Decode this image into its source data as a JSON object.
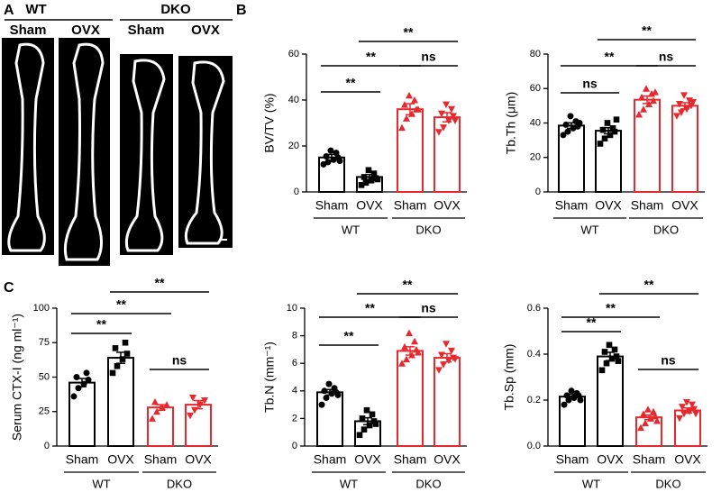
{
  "panel_labels": [
    "A",
    "B",
    "C"
  ],
  "panel_a": {
    "groups": [
      {
        "label": "WT",
        "conditions": [
          "Sham",
          "OVX"
        ]
      },
      {
        "label": "DKO",
        "conditions": [
          "Sham",
          "OVX"
        ]
      }
    ]
  },
  "chart_data": [
    {
      "type": "bar",
      "ylabel": "BV/TV (%)",
      "categories": [
        "Sham",
        "OVX",
        "Sham",
        "OVX"
      ],
      "groups": [
        {
          "name": "WT",
          "color": "#000000"
        },
        {
          "name": "DKO",
          "color": "#e8282d"
        }
      ],
      "values": [
        15,
        6.5,
        36,
        32.5
      ],
      "errors": [
        1.3,
        1.1,
        2.4,
        2.0
      ],
      "points": [
        [
          12,
          13,
          14,
          15,
          15.5,
          17,
          18,
          13.5
        ],
        [
          3,
          4,
          5,
          6,
          6.5,
          8,
          9.5,
          5.5
        ],
        [
          28,
          32,
          34,
          36,
          38,
          40,
          42,
          36
        ],
        [
          26,
          28,
          31,
          33,
          34,
          36,
          38,
          31
        ]
      ],
      "ylim": [
        0,
        60
      ],
      "yticks": [
        0,
        20,
        40,
        60
      ],
      "annotations": [
        "**",
        "**",
        "ns",
        "**"
      ]
    },
    {
      "type": "bar",
      "ylabel": "Tb.Th (μm)",
      "categories": [
        "Sham",
        "OVX",
        "Sham",
        "OVX"
      ],
      "groups": [
        {
          "name": "WT",
          "color": "#000000"
        },
        {
          "name": "DKO",
          "color": "#e8282d"
        }
      ],
      "values": [
        38.5,
        35.5,
        53.5,
        50
      ],
      "errors": [
        1.6,
        1.8,
        2.2,
        1.8
      ],
      "points": [
        [
          33,
          35,
          37,
          38,
          39,
          41,
          44,
          40
        ],
        [
          28,
          31,
          33,
          35,
          36,
          37,
          40,
          42
        ],
        [
          45,
          48,
          51,
          53,
          55,
          57,
          60,
          58
        ],
        [
          44,
          46,
          48,
          50,
          51,
          53,
          56,
          52
        ]
      ],
      "ylim": [
        0,
        80
      ],
      "yticks": [
        0,
        20,
        40,
        60,
        80
      ],
      "annotations": [
        "**",
        "**",
        "ns",
        "ns"
      ]
    },
    {
      "type": "bar",
      "ylabel": "Serum CTX-I (ng ml⁻¹)",
      "categories": [
        "Sham",
        "OVX",
        "Sham",
        "OVX"
      ],
      "groups": [
        {
          "name": "WT",
          "color": "#000000"
        },
        {
          "name": "DKO",
          "color": "#e8282d"
        }
      ],
      "values": [
        46,
        64,
        28,
        30
      ],
      "errors": [
        3,
        4,
        2,
        3
      ],
      "points": [
        [
          36,
          42,
          45,
          48,
          50,
          53
        ],
        [
          53,
          58,
          63,
          67,
          71,
          75
        ],
        [
          20,
          25,
          28,
          30,
          32
        ],
        [
          22,
          26,
          30,
          33,
          35
        ]
      ],
      "ylim": [
        0,
        100
      ],
      "yticks": [
        0,
        25,
        50,
        75,
        100
      ],
      "annotations": [
        "**",
        "**",
        "ns",
        "**"
      ]
    },
    {
      "type": "bar",
      "ylabel": "Tb.N (mm⁻¹)",
      "categories": [
        "Sham",
        "OVX",
        "Sham",
        "OVX"
      ],
      "groups": [
        {
          "name": "WT",
          "color": "#000000"
        },
        {
          "name": "DKO",
          "color": "#e8282d"
        }
      ],
      "values": [
        3.9,
        1.8,
        6.9,
        6.4
      ],
      "errors": [
        0.2,
        0.25,
        0.3,
        0.3
      ],
      "points": [
        [
          3.0,
          3.5,
          3.8,
          3.9,
          4.0,
          4.2,
          4.5,
          3.7
        ],
        [
          0.8,
          1.2,
          1.5,
          1.8,
          2.0,
          2.3,
          2.6,
          1.6
        ],
        [
          6.0,
          6.3,
          6.6,
          7.0,
          7.2,
          7.6,
          8.2,
          6.8
        ],
        [
          5.5,
          5.9,
          6.2,
          6.4,
          6.6,
          6.9,
          7.4,
          6.3
        ]
      ],
      "ylim": [
        0,
        10
      ],
      "yticks": [
        0,
        2,
        4,
        6,
        8,
        10
      ],
      "annotations": [
        "**",
        "**",
        "ns",
        "**"
      ]
    },
    {
      "type": "bar",
      "ylabel": "Tb.Sp (mm)",
      "categories": [
        "Sham",
        "OVX",
        "Sham",
        "OVX"
      ],
      "groups": [
        {
          "name": "WT",
          "color": "#000000"
        },
        {
          "name": "DKO",
          "color": "#e8282d"
        }
      ],
      "values": [
        0.215,
        0.39,
        0.125,
        0.155
      ],
      "errors": [
        0.01,
        0.018,
        0.01,
        0.011
      ],
      "points": [
        [
          0.18,
          0.2,
          0.21,
          0.22,
          0.22,
          0.23,
          0.24,
          0.2
        ],
        [
          0.33,
          0.36,
          0.38,
          0.39,
          0.41,
          0.42,
          0.44,
          0.37
        ],
        [
          0.08,
          0.1,
          0.12,
          0.13,
          0.14,
          0.15,
          0.16,
          0.11
        ],
        [
          0.12,
          0.14,
          0.15,
          0.16,
          0.17,
          0.18,
          0.19,
          0.14
        ]
      ],
      "ylim": [
        0,
        0.6
      ],
      "yticks": [
        {
          "value": 0,
          "label": "0.0"
        },
        0.2,
        0.4,
        0.6
      ],
      "annotations": [
        "**",
        "**",
        "ns",
        "**"
      ]
    }
  ]
}
